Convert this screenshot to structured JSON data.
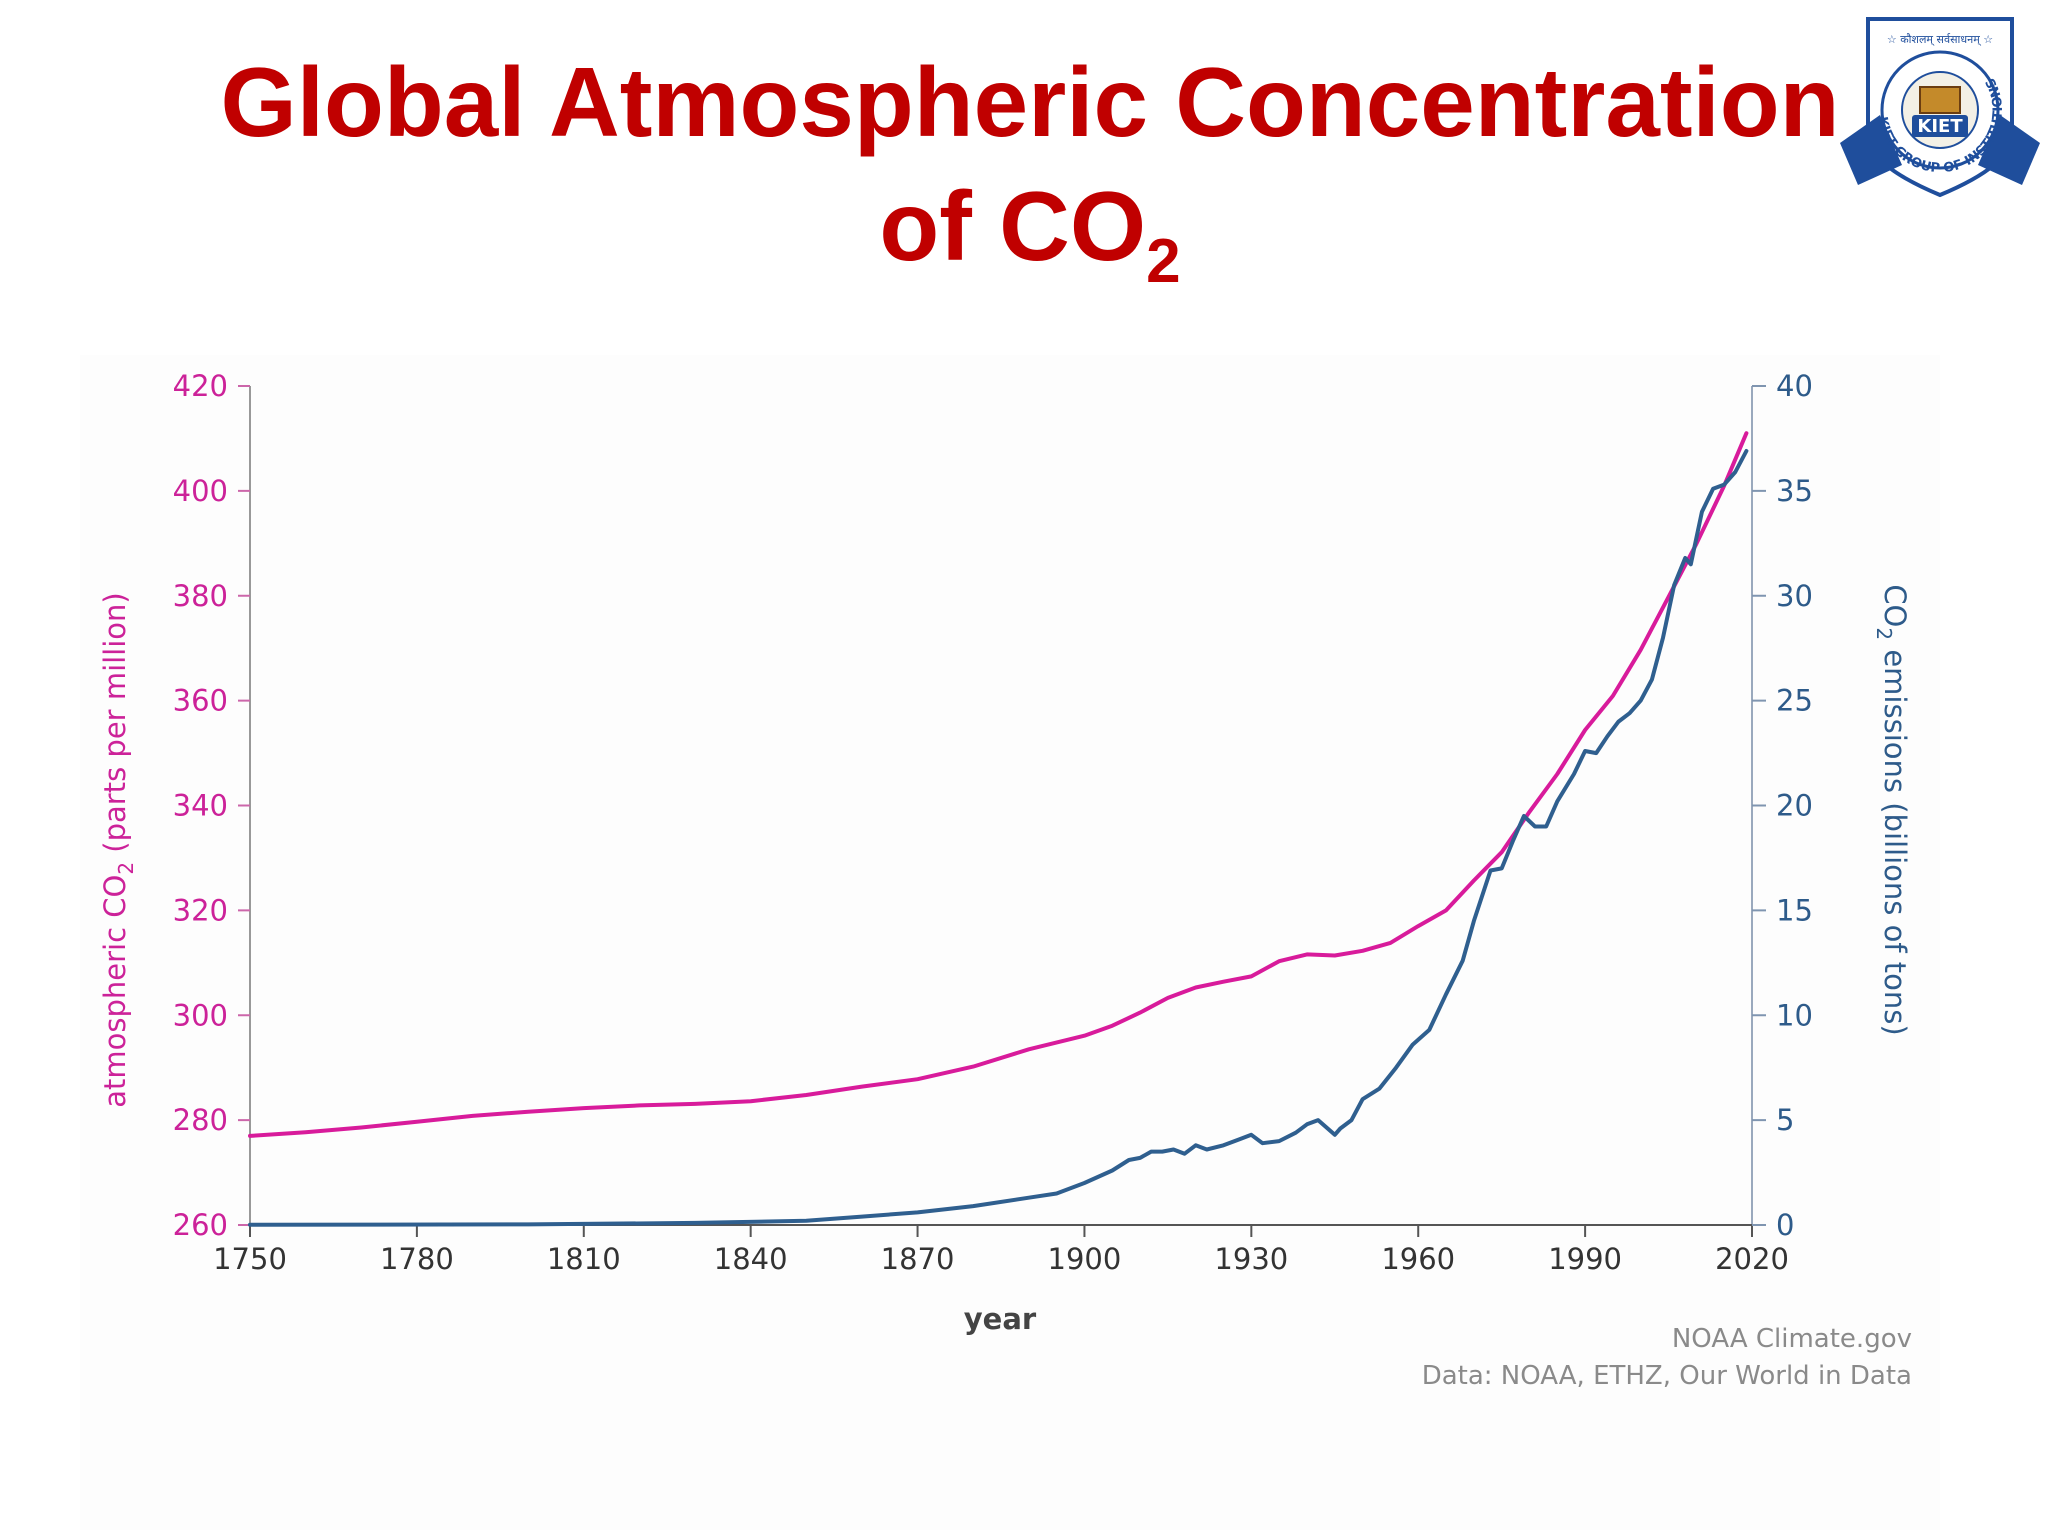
{
  "slide": {
    "title_line1": "Global Atmospheric Concentration",
    "title_line2_main": "of CO",
    "title_line2_sub": "2"
  },
  "logo": {
    "motto": "☆ कौशलम् सर्वसाधनम् ☆",
    "ring_text": "KIET GROUP OF INSTITUTIONS",
    "badge": "KIET",
    "colors": {
      "blue": "#1f4e9c",
      "gold": "#c48a2a"
    }
  },
  "colors": {
    "co2_concentration": "#d81b9b",
    "co2_emissions": "#2f5f8f",
    "axis_left": "#cc2299",
    "axis_right": "#2e5b8a",
    "title": "#c00000"
  },
  "chart_data": {
    "type": "line",
    "xlabel": "year",
    "y_left_label_pre": "atmospheric CO",
    "y_left_label_sub": "2",
    "y_left_label_post": " (parts per million)",
    "y_right_label_pre": "CO",
    "y_right_label_sub": "2",
    "y_right_label_post": " emissions (billions of tons)",
    "xlim": [
      1750,
      2020
    ],
    "y_left_lim": [
      260,
      420
    ],
    "y_right_lim": [
      0,
      40
    ],
    "x_ticks": [
      "1750",
      "1780",
      "1810",
      "1840",
      "1870",
      "1900",
      "1930",
      "1960",
      "1990",
      "2020"
    ],
    "y_left_ticks": [
      "260",
      "280",
      "300",
      "320",
      "340",
      "360",
      "380",
      "400",
      "420"
    ],
    "y_right_ticks": [
      "0",
      "5",
      "10",
      "15",
      "20",
      "25",
      "30",
      "35",
      "40"
    ],
    "credit_line1": "NOAA Climate.gov",
    "credit_line2": "Data: NOAA, ETHZ, Our World in Data",
    "series": [
      {
        "key": "concentration",
        "axis": "left",
        "x": [
          1750,
          1760,
          1770,
          1780,
          1790,
          1800,
          1810,
          1820,
          1830,
          1840,
          1850,
          1860,
          1870,
          1880,
          1890,
          1900,
          1905,
          1910,
          1915,
          1920,
          1925,
          1930,
          1935,
          1940,
          1945,
          1950,
          1955,
          1960,
          1965,
          1970,
          1975,
          1980,
          1985,
          1990,
          1995,
          2000,
          2005,
          2010,
          2015,
          2019
        ],
        "y": [
          277,
          277.7,
          278.6,
          279.7,
          280.8,
          281.6,
          282.3,
          282.8,
          283.1,
          283.6,
          284.8,
          286.4,
          287.8,
          290.2,
          293.5,
          296.1,
          298.0,
          300.5,
          303.3,
          305.3,
          306.4,
          307.4,
          310.3,
          311.6,
          311.4,
          312.3,
          313.8,
          317.0,
          320.0,
          325.7,
          331.1,
          338.8,
          346.0,
          354.4,
          360.9,
          369.7,
          379.8,
          389.9,
          401.0,
          411.0
        ]
      },
      {
        "key": "emissions",
        "axis": "right",
        "x": [
          1750,
          1800,
          1830,
          1850,
          1860,
          1870,
          1880,
          1890,
          1895,
          1900,
          1905,
          1908,
          1910,
          1912,
          1914,
          1916,
          1918,
          1920,
          1922,
          1925,
          1928,
          1930,
          1932,
          1935,
          1938,
          1940,
          1942,
          1945,
          1946,
          1948,
          1950,
          1953,
          1956,
          1959,
          1962,
          1965,
          1968,
          1970,
          1973,
          1975,
          1977,
          1979,
          1981,
          1983,
          1985,
          1988,
          1990,
          1992,
          1994,
          1996,
          1998,
          2000,
          2002,
          2004,
          2006,
          2008,
          2009,
          2011,
          2013,
          2015,
          2017,
          2019
        ],
        "y": [
          0.01,
          0.03,
          0.1,
          0.2,
          0.4,
          0.6,
          0.9,
          1.3,
          1.5,
          2.0,
          2.6,
          3.1,
          3.2,
          3.5,
          3.5,
          3.6,
          3.4,
          3.8,
          3.6,
          3.8,
          4.1,
          4.3,
          3.9,
          4.0,
          4.4,
          4.8,
          5.0,
          4.3,
          4.6,
          5.0,
          6.0,
          6.5,
          7.5,
          8.6,
          9.3,
          11.0,
          12.6,
          14.5,
          16.9,
          17.0,
          18.3,
          19.5,
          19.0,
          19.0,
          20.2,
          21.5,
          22.6,
          22.5,
          23.3,
          24.0,
          24.4,
          25.0,
          26.0,
          28.0,
          30.5,
          31.8,
          31.5,
          34.0,
          35.1,
          35.3,
          35.9,
          36.9
        ]
      }
    ]
  }
}
